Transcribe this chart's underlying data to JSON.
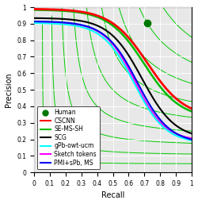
{
  "xlabel": "Recall",
  "ylabel": "Precision",
  "xlim": [
    0,
    1
  ],
  "ylim": [
    0,
    1
  ],
  "human_point": [
    0.72,
    0.903
  ],
  "human_color": "#007700",
  "human_marker": "o",
  "human_markersize": 6,
  "iso_f_color": "#00cc00",
  "iso_f_linewidth": 0.7,
  "iso_f_values": [
    0.1,
    0.2,
    0.3,
    0.4,
    0.5,
    0.6,
    0.7,
    0.8,
    0.9
  ],
  "legend_entries": [
    "Human",
    "CSCNN",
    "SE-MS-SH",
    "SCG",
    "gPb-owt-ucm",
    "Sketch tokens",
    "PMI+sPb, MS"
  ],
  "legend_colors": [
    "#007700",
    "#ff0000",
    "#00bb00",
    "#000000",
    "#00ffff",
    "#ff00ff",
    "#0000ee"
  ],
  "figsize": [
    2.5,
    2.57
  ],
  "dpi": 100,
  "background_color": "#e8e8e8",
  "grid_color": "#ffffff",
  "tick_fontsize": 5.5,
  "label_fontsize": 7,
  "legend_fontsize": 5.5
}
